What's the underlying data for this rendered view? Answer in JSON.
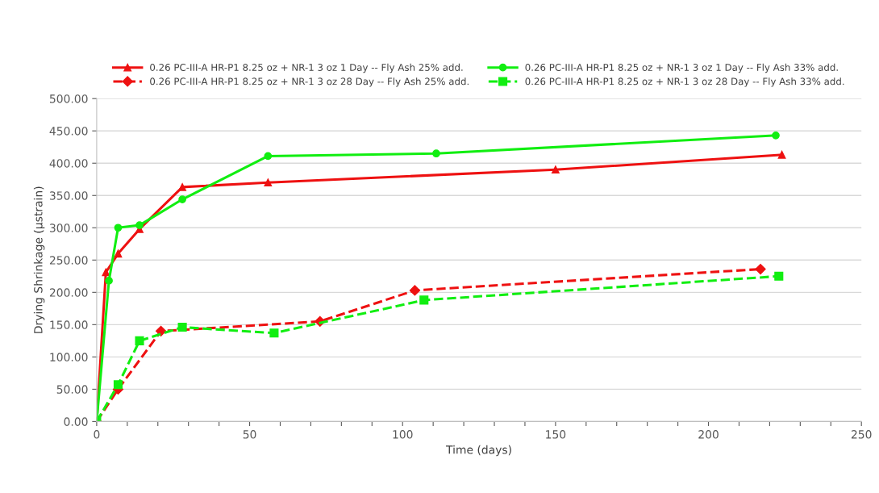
{
  "chart_data": {
    "type": "line",
    "xlabel": "Time (days)",
    "ylabel": "Drying Shrinkage (µstrain)",
    "legend": "top",
    "grid": "y",
    "xlim": [
      0,
      250
    ],
    "ylim": [
      0,
      500
    ],
    "xticks": [
      0,
      {
        "value": 10,
        "label": null
      },
      {
        "value": 20,
        "label": null
      },
      {
        "value": 30,
        "label": null
      },
      {
        "value": 40,
        "label": null
      },
      50,
      {
        "value": 60,
        "label": null
      },
      {
        "value": 70,
        "label": null
      },
      {
        "value": 80,
        "label": null
      },
      {
        "value": 90,
        "label": null
      },
      100,
      {
        "value": 110,
        "label": null
      },
      {
        "value": 120,
        "label": null
      },
      {
        "value": 130,
        "label": null
      },
      {
        "value": 140,
        "label": null
      },
      150,
      {
        "value": 160,
        "label": null
      },
      {
        "value": 170,
        "label": null
      },
      {
        "value": 180,
        "label": null
      },
      {
        "value": 190,
        "label": null
      },
      200,
      {
        "value": 210,
        "label": null
      },
      {
        "value": 220,
        "label": null
      },
      {
        "value": 230,
        "label": null
      },
      {
        "value": 240,
        "label": null
      },
      250
    ],
    "yticks": [
      {
        "value": 0,
        "label": "0.00"
      },
      {
        "value": 50,
        "label": "50.00"
      },
      {
        "value": 100,
        "label": "100.00"
      },
      {
        "value": 150,
        "label": "150.00"
      },
      {
        "value": 200,
        "label": "200.00"
      },
      {
        "value": 250,
        "label": "250.00"
      },
      {
        "value": 300,
        "label": "300.00"
      },
      {
        "value": 350,
        "label": "350.00"
      },
      {
        "value": 400,
        "label": "400.00"
      },
      {
        "value": 450,
        "label": "450.00"
      },
      {
        "value": 500,
        "label": "500.00"
      }
    ],
    "series": [
      {
        "name": "0.26 PC-III-A HR-P1 8.25 oz + NR-1 3 oz 1 Day -- Fly Ash 25% add.",
        "color": "#ee1111",
        "marker": "triangle",
        "line_style": "solid",
        "x": [
          0,
          3,
          7,
          14,
          28,
          56,
          150,
          224
        ],
        "values": [
          0,
          231,
          260,
          298,
          363,
          370,
          390,
          413
        ]
      },
      {
        "name": "0.26 PC-III-A HR-P1 8.25 oz + NR-1 3 oz 28 Day -- Fly Ash 25% add.",
        "color": "#ee1111",
        "marker": "diamond",
        "line_style": "dashed",
        "x": [
          0,
          7,
          21,
          73,
          104,
          217
        ],
        "values": [
          0,
          50,
          140,
          155,
          203,
          236
        ]
      },
      {
        "name": "0.26 PC-III-A HR-P1 8.25 oz + NR-1 3 oz 1 Day -- Fly Ash 33% add.",
        "color": "#11ee11",
        "marker": "circle",
        "line_style": "solid",
        "x": [
          0,
          4,
          7,
          14,
          28,
          56,
          111,
          222
        ],
        "values": [
          0,
          218,
          300,
          304,
          344,
          411,
          415,
          443
        ]
      },
      {
        "name": "0.26 PC-III-A HR-P1 8.25 oz + NR-1 3 oz 28 Day -- Fly Ash 33% add.",
        "color": "#11ee11",
        "marker": "square",
        "line_style": "dashed",
        "x": [
          0,
          7,
          14,
          28,
          58,
          107,
          223
        ],
        "values": [
          0,
          57,
          125,
          146,
          137,
          188,
          225
        ]
      }
    ]
  }
}
